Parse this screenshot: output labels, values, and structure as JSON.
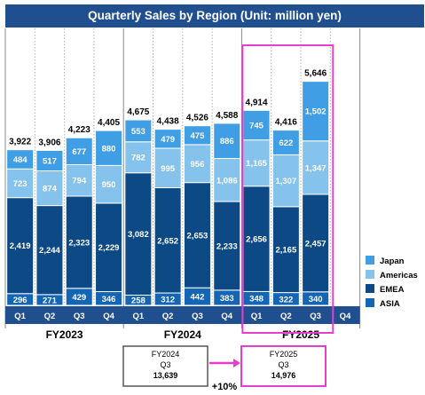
{
  "chart_data": {
    "type": "bar",
    "stacked": true,
    "title": "Quarterly Sales by Region (Unit: million yen)",
    "categories": [
      "Q1",
      "Q2",
      "Q3",
      "Q4",
      "Q1",
      "Q2",
      "Q3",
      "Q4",
      "Q1",
      "Q2",
      "Q3",
      "Q4"
    ],
    "groups": [
      {
        "label": "FY2023",
        "start": 0,
        "count": 4
      },
      {
        "label": "FY2024",
        "start": 4,
        "count": 4
      },
      {
        "label": "FY2025",
        "start": 8,
        "count": 4
      }
    ],
    "series": [
      {
        "name": "ASIA",
        "color": "#1565b5",
        "values": [
          296,
          271,
          429,
          346,
          258,
          312,
          442,
          383,
          348,
          322,
          340,
          null
        ],
        "labels": [
          "296",
          "271",
          "429",
          "346",
          "258",
          "312",
          "442",
          "383",
          "348",
          "322",
          "340",
          ""
        ]
      },
      {
        "name": "EMEA",
        "color": "#0d4a85",
        "values": [
          2419,
          2244,
          2323,
          2229,
          3082,
          2652,
          2653,
          2233,
          2656,
          2165,
          2457,
          null
        ],
        "labels": [
          "2,419",
          "2,244",
          "2,323",
          "2,229",
          "3,082",
          "2,652",
          "2,653",
          "2,233",
          "2,656",
          "2,165",
          "2,457",
          ""
        ]
      },
      {
        "name": "Americas",
        "color": "#86c3ec",
        "values": [
          723,
          874,
          794,
          950,
          782,
          995,
          956,
          1086,
          1165,
          1307,
          1347,
          null
        ],
        "labels": [
          "723",
          "874",
          "794",
          "950",
          "782",
          "995",
          "956",
          "1,086",
          "1,165",
          "1,307",
          "1,347",
          ""
        ]
      },
      {
        "name": "Japan",
        "color": "#3f9ee4",
        "values": [
          484,
          517,
          677,
          880,
          553,
          479,
          475,
          886,
          745,
          622,
          1502,
          null
        ],
        "labels": [
          "484",
          "517",
          "677",
          "880",
          "553",
          "479",
          "475",
          "886",
          "745",
          "622",
          "1,502",
          ""
        ]
      }
    ],
    "totals": [
      "3,922",
      "3,906",
      "4,223",
      "4,405",
      "4,675",
      "4,438",
      "4,526",
      "4,588",
      "4,914",
      "4,416",
      "5,646",
      ""
    ],
    "legend": {
      "position": "right",
      "order": [
        "Japan",
        "Americas",
        "EMEA",
        "ASIA"
      ]
    },
    "highlight": {
      "group": "FY2025",
      "color": "#e83ece"
    },
    "comparison": {
      "left": {
        "line1": "FY2024",
        "line2": "Q3",
        "line3": "13,639"
      },
      "right": {
        "line1": "FY2025",
        "line2": "Q3",
        "line3": "14,976"
      },
      "change": "+10%"
    }
  }
}
